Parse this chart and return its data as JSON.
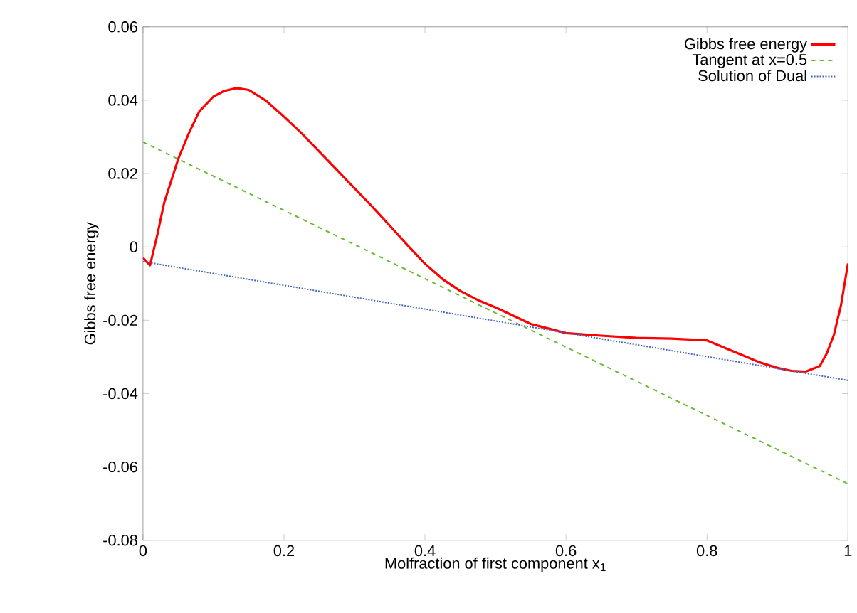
{
  "chart_data": {
    "type": "line",
    "xlabel": "Molfraction of first component x$_{1}$",
    "ylabel": "Gibbs free energy",
    "xlim": [
      0,
      1
    ],
    "ylim": [
      -0.08,
      0.06
    ],
    "xticks": [
      0,
      0.2,
      0.4,
      0.6,
      0.8,
      1
    ],
    "yticks": [
      -0.08,
      -0.06,
      -0.04,
      -0.02,
      0,
      0.02,
      0.04,
      0.06
    ],
    "grid": false,
    "legend": "top right",
    "series": [
      {
        "name": "Gibbs free energy",
        "color": "#ff0000",
        "line_style": "solid",
        "x": [
          0,
          0.01,
          0.02,
          0.03,
          0.05,
          0.065,
          0.08,
          0.1,
          0.115,
          0.133,
          0.15,
          0.175,
          0.2,
          0.225,
          0.25,
          0.275,
          0.3,
          0.325,
          0.35,
          0.375,
          0.4,
          0.425,
          0.45,
          0.475,
          0.5,
          0.55,
          0.6,
          0.65,
          0.7,
          0.75,
          0.8,
          0.85,
          0.875,
          0.9,
          0.92,
          0.94,
          0.96,
          0.97,
          0.98,
          0.99,
          1
        ],
        "values": [
          -0.003,
          -0.005,
          0.003,
          0.012,
          0.024,
          0.031,
          0.037,
          0.041,
          0.0425,
          0.0433,
          0.0428,
          0.0398,
          0.0355,
          0.031,
          0.026,
          0.021,
          0.016,
          0.011,
          0.0058,
          0.0005,
          -0.0046,
          -0.0088,
          -0.012,
          -0.0145,
          -0.0165,
          -0.021,
          -0.0235,
          -0.0242,
          -0.0248,
          -0.025,
          -0.0255,
          -0.0295,
          -0.0315,
          -0.033,
          -0.0338,
          -0.034,
          -0.0325,
          -0.029,
          -0.024,
          -0.016,
          -0.0045
        ]
      },
      {
        "name": "Tangent at x=0.5",
        "color": "#66bb33",
        "line_style": "dashed",
        "x": [
          0,
          1
        ],
        "values": [
          0.0286,
          -0.0646
        ]
      },
      {
        "name": "Solution of Dual",
        "color": "#4466bb",
        "line_style": "dotted",
        "x": [
          0,
          1
        ],
        "values": [
          -0.004,
          -0.0364
        ]
      }
    ]
  }
}
